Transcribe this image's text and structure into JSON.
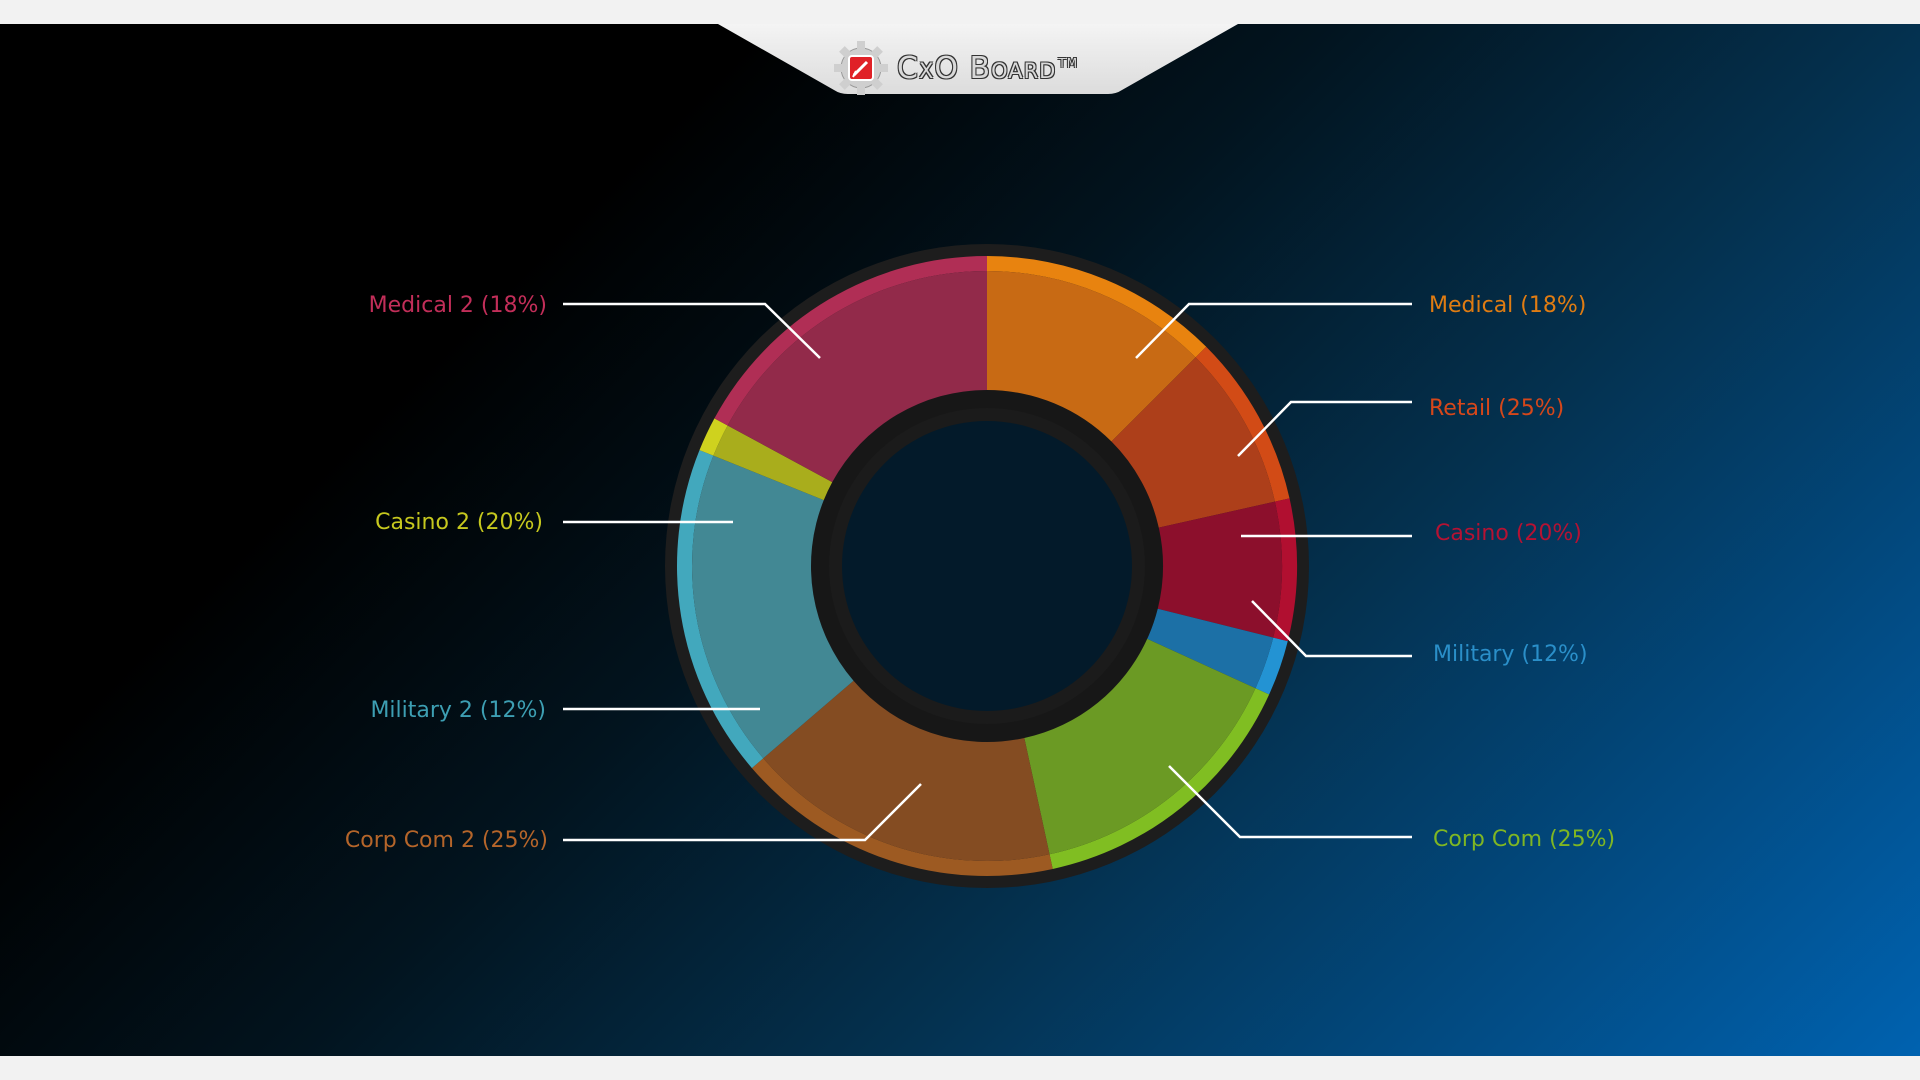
{
  "header": {
    "logo_text": "CxO Board",
    "logo_tm": "TM"
  },
  "colors": {
    "stage_start": "#000000",
    "stage_end": "#0062b0",
    "ring_border": "#1d1d1d",
    "leader_line": "#ffffff"
  },
  "chart_data": {
    "type": "pie",
    "variant": "donut",
    "legend": "none",
    "slices": [
      {
        "label": "Medical (18%)",
        "weight": 12.5,
        "color": "#c86a14",
        "outer_color": "#e8830f",
        "label_color": "#e07c12"
      },
      {
        "label": "Retail (25%)",
        "weight": 9.0,
        "color": "#ad3f1a",
        "outer_color": "#d24b16",
        "label_color": "#d6471a"
      },
      {
        "label": "Casino (20%)",
        "weight": 7.4,
        "color": "#8c0f2c",
        "outer_color": "#b10f30",
        "label_color": "#b51233"
      },
      {
        "label": "Military (12%)",
        "weight": 2.9,
        "color": "#1c70a6",
        "outer_color": "#2393d3",
        "label_color": "#2a8fc9"
      },
      {
        "label": "Corp Com (25%)",
        "weight": 14.8,
        "color": "#6b9a24",
        "outer_color": "#80be22",
        "label_color": "#7fb623"
      },
      {
        "label": "Corp Com 2 (25%)",
        "weight": 17.1,
        "color": "#844c22",
        "outer_color": "#9d5a22",
        "label_color": "#b5652a"
      },
      {
        "label": "Military 2 (12%)",
        "weight": 17.4,
        "color": "#428894",
        "outer_color": "#42a8bd",
        "label_color": "#3d9fb3"
      },
      {
        "label": "Casino 2  (20%)",
        "weight": 1.8,
        "color": "#a9ad1c",
        "outer_color": "#cfd21e",
        "label_color": "#c6c81e"
      },
      {
        "label": "Medical 2 (18%)",
        "weight": 17.1,
        "color": "#922a4a",
        "outer_color": "#b02e55",
        "label_color": "#c22e59"
      }
    ]
  }
}
